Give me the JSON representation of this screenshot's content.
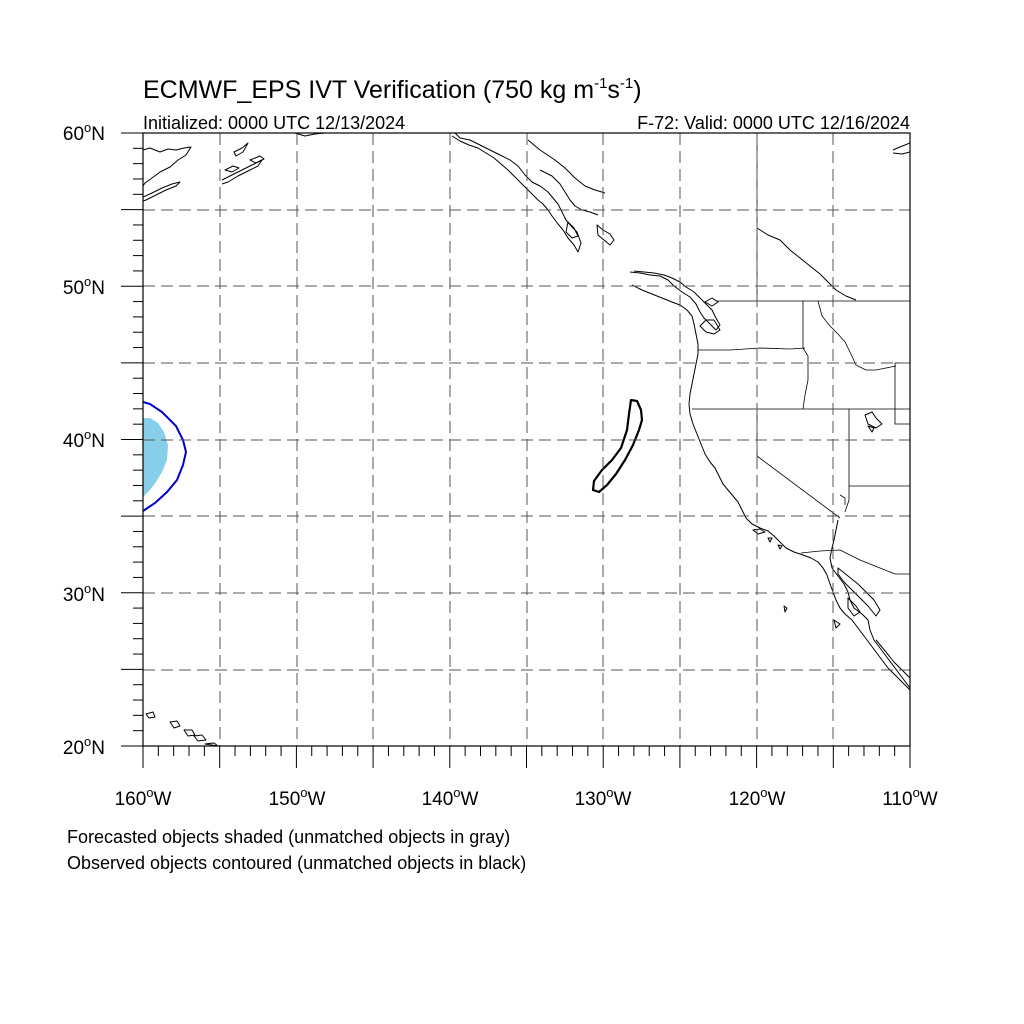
{
  "title": {
    "main": "ECMWF_EPS IVT Verification (750 kg m",
    "sup1": "-1",
    "mid": "s",
    "sup2": "-1",
    "end": ")"
  },
  "initialized": "Initialized: 0000 UTC 12/13/2024",
  "valid": "F-72: Valid: 0000 UTC 12/16/2024",
  "axes": {
    "lat_labels": [
      "60",
      "50",
      "40",
      "30",
      "20"
    ],
    "lat_suffix": "N",
    "lon_labels": [
      "160",
      "150",
      "140",
      "130",
      "120",
      "110"
    ],
    "lon_suffix": "W",
    "degree": "o",
    "lon_range": [
      -160,
      -110
    ],
    "lat_range": [
      20,
      60
    ],
    "grid": "dashed every 5 degrees"
  },
  "notes": {
    "forecast": "Forecasted objects shaded (unmatched objects in gray)",
    "observed": "Observed objects contoured (unmatched objects in black)"
  },
  "colors": {
    "forecast_matched_fill": "#87ceeb",
    "observed_matched_contour": "#0000cc",
    "observed_unmatched_contour": "#000000",
    "grid": "#555555",
    "coastline": "#000000"
  }
}
